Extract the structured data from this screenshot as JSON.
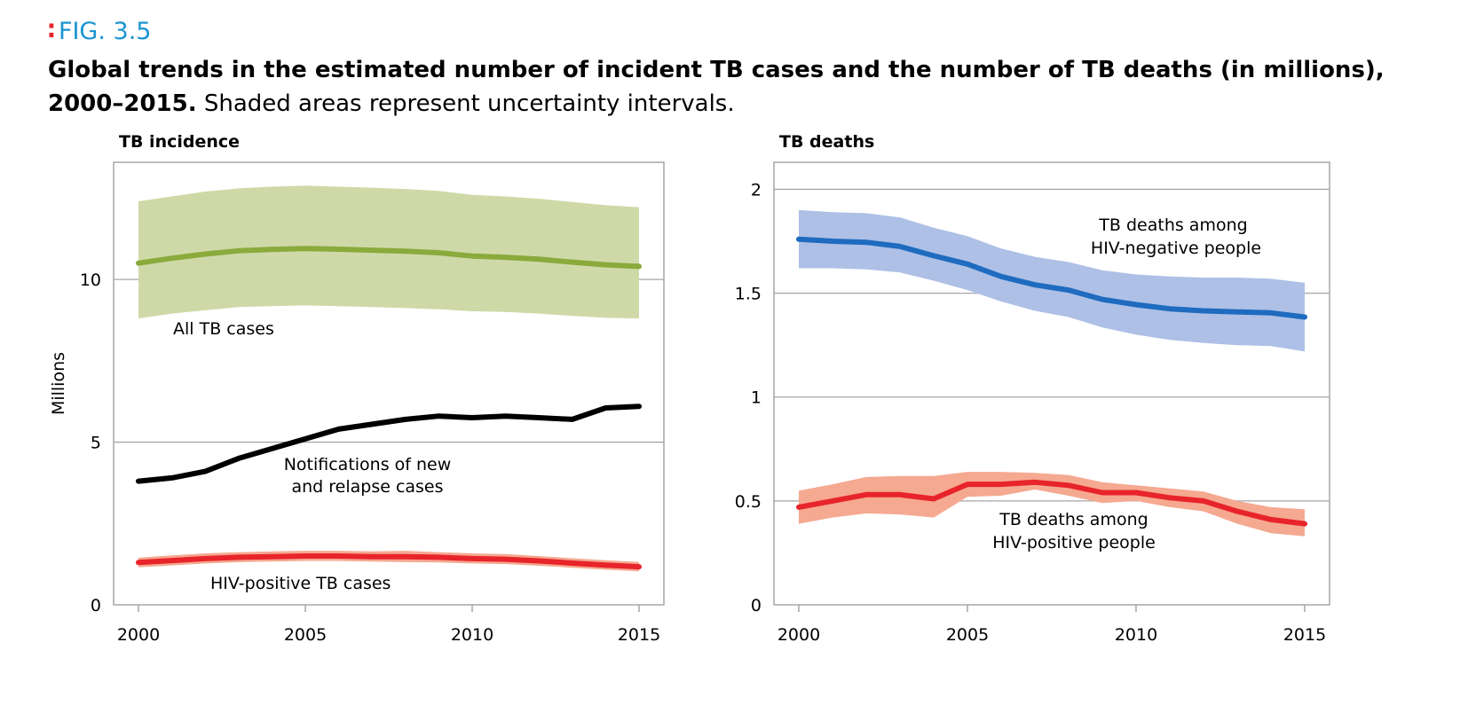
{
  "figure": {
    "label": "FIG. 3.5",
    "title_bold": "Global trends in the estimated number of incident TB cases and the number of TB deaths (in millions), 2000–2015.",
    "title_rest": "Shaded areas represent uncertainty intervals."
  },
  "colors": {
    "label_blue": "#1a94d0",
    "dots_red": "#e8242b",
    "all_tb_line": "#8aaa3c",
    "all_tb_band": "#cfd9a8",
    "notifications_line": "#000000",
    "hiv_pos_line": "#e8242b",
    "hiv_pos_band": "#f5a991",
    "hiv_neg_line": "#1e6bbf",
    "hiv_neg_band": "#aec0e6",
    "grid": "#a6a6a6"
  },
  "chart_data": [
    {
      "type": "line",
      "title": "TB incidence",
      "ylabel": "Millions",
      "xlim": [
        2000,
        2015
      ],
      "ylim": [
        0,
        13.6
      ],
      "xticks": [
        2000,
        2005,
        2010,
        2015
      ],
      "yticks": [
        0,
        5,
        10
      ],
      "grid": "horizontal",
      "x": [
        2000,
        2001,
        2002,
        2003,
        2004,
        2005,
        2006,
        2007,
        2008,
        2009,
        2010,
        2011,
        2012,
        2013,
        2014,
        2015
      ],
      "series": [
        {
          "name": "All TB cases",
          "color": "#8aaa3c",
          "band_color": "#cfd9a8",
          "values": [
            10.5,
            10.65,
            10.78,
            10.88,
            10.92,
            10.95,
            10.93,
            10.9,
            10.87,
            10.82,
            10.72,
            10.68,
            10.62,
            10.53,
            10.45,
            10.4
          ],
          "lower": [
            8.8,
            8.95,
            9.05,
            9.15,
            9.18,
            9.2,
            9.18,
            9.15,
            9.12,
            9.08,
            9.02,
            9.0,
            8.95,
            8.88,
            8.82,
            8.8
          ],
          "upper": [
            12.4,
            12.55,
            12.7,
            12.8,
            12.85,
            12.88,
            12.85,
            12.82,
            12.78,
            12.72,
            12.6,
            12.55,
            12.48,
            12.38,
            12.28,
            12.22
          ]
        },
        {
          "name": "Notifications of new and relapse cases",
          "color": "#000000",
          "values": [
            3.8,
            3.9,
            4.1,
            4.5,
            4.8,
            5.1,
            5.4,
            5.55,
            5.7,
            5.8,
            5.75,
            5.8,
            5.75,
            5.7,
            6.05,
            6.1
          ]
        },
        {
          "name": "HIV-positive TB cases",
          "color": "#e8242b",
          "band_color": "#f5a991",
          "values": [
            1.3,
            1.36,
            1.42,
            1.46,
            1.48,
            1.5,
            1.5,
            1.48,
            1.48,
            1.46,
            1.42,
            1.4,
            1.35,
            1.28,
            1.22,
            1.17
          ],
          "lower": [
            1.15,
            1.21,
            1.27,
            1.31,
            1.33,
            1.35,
            1.35,
            1.33,
            1.31,
            1.3,
            1.27,
            1.25,
            1.2,
            1.14,
            1.08,
            1.03
          ],
          "upper": [
            1.45,
            1.52,
            1.58,
            1.62,
            1.64,
            1.66,
            1.66,
            1.64,
            1.66,
            1.62,
            1.58,
            1.56,
            1.5,
            1.43,
            1.37,
            1.32
          ]
        }
      ],
      "annotations": [
        "All TB cases",
        "Notifications of new",
        "and relapse cases",
        "HIV-positive TB cases"
      ]
    },
    {
      "type": "line",
      "title": "TB deaths",
      "ylabel": "Millions",
      "xlim": [
        2000,
        2015
      ],
      "ylim": [
        0,
        2.13
      ],
      "xticks": [
        2000,
        2005,
        2010,
        2015
      ],
      "yticks": [
        0,
        0.5,
        1,
        1.5,
        2
      ],
      "ytick_labels": [
        "0",
        "0.5",
        "1",
        "1.5",
        "2"
      ],
      "grid": "horizontal",
      "x": [
        2000,
        2001,
        2002,
        2003,
        2004,
        2005,
        2006,
        2007,
        2008,
        2009,
        2010,
        2011,
        2012,
        2013,
        2014,
        2015
      ],
      "series": [
        {
          "name": "TB deaths among HIV-negative people",
          "color": "#1e6bbf",
          "band_color": "#aec0e6",
          "values": [
            1.76,
            1.75,
            1.745,
            1.725,
            1.68,
            1.64,
            1.58,
            1.54,
            1.515,
            1.47,
            1.445,
            1.425,
            1.415,
            1.41,
            1.405,
            1.385
          ],
          "lower": [
            1.62,
            1.62,
            1.615,
            1.6,
            1.56,
            1.515,
            1.46,
            1.415,
            1.385,
            1.335,
            1.3,
            1.275,
            1.26,
            1.25,
            1.245,
            1.22
          ],
          "upper": [
            1.9,
            1.89,
            1.885,
            1.865,
            1.815,
            1.775,
            1.715,
            1.675,
            1.65,
            1.61,
            1.59,
            1.58,
            1.575,
            1.575,
            1.57,
            1.55
          ]
        },
        {
          "name": "TB deaths among HIV-positive people",
          "color": "#e8242b",
          "band_color": "#f5a991",
          "values": [
            0.47,
            0.5,
            0.53,
            0.53,
            0.51,
            0.58,
            0.58,
            0.59,
            0.575,
            0.54,
            0.54,
            0.515,
            0.5,
            0.45,
            0.41,
            0.39
          ],
          "lower": [
            0.39,
            0.42,
            0.44,
            0.435,
            0.42,
            0.52,
            0.525,
            0.555,
            0.525,
            0.49,
            0.5,
            0.47,
            0.45,
            0.39,
            0.345,
            0.33
          ],
          "upper": [
            0.55,
            0.58,
            0.615,
            0.62,
            0.62,
            0.64,
            0.64,
            0.635,
            0.625,
            0.59,
            0.575,
            0.56,
            0.545,
            0.5,
            0.47,
            0.46
          ]
        }
      ],
      "annotations": [
        "TB deaths among",
        "HIV-negative people",
        "TB deaths among",
        "HIV-positive people"
      ]
    }
  ]
}
